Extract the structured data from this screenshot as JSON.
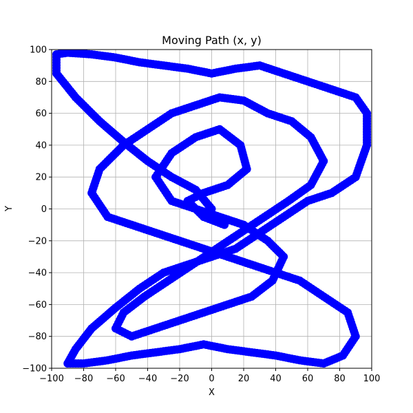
{
  "chart_data": {
    "type": "scatter",
    "title": "Moving Path (x, y)",
    "xlabel": "X",
    "ylabel": "Y",
    "xlim": [
      -100,
      100
    ],
    "ylim": [
      -100,
      100
    ],
    "xticks": [
      -100,
      -80,
      -60,
      -40,
      -20,
      0,
      20,
      40,
      60,
      80,
      100
    ],
    "yticks": [
      -100,
      -80,
      -60,
      -40,
      -20,
      0,
      20,
      40,
      60,
      80,
      100
    ],
    "grid": true,
    "marker_color": "#0000ff",
    "series": [
      {
        "x": [
          0,
          -10,
          -25,
          -40,
          -55,
          -70,
          -85,
          -97,
          -97,
          -90,
          -75,
          -60,
          -45,
          -30,
          -15,
          0,
          15,
          30,
          45,
          60,
          75,
          90,
          97,
          97,
          90,
          75,
          60,
          45,
          30,
          15,
          0,
          -15,
          -30,
          -45,
          -60,
          -75,
          -85,
          -90,
          -80,
          -65,
          -50,
          -35,
          -20,
          -5,
          10,
          25,
          40,
          55,
          70,
          82,
          90,
          85,
          70,
          55,
          40,
          25,
          10,
          -5,
          -20,
          -35,
          -50,
          -65,
          -75,
          -70,
          -55,
          -40,
          -25,
          -10,
          5,
          20,
          35,
          50,
          62,
          70,
          62,
          48,
          33,
          18,
          3,
          -12,
          -27,
          -42,
          -55,
          -60,
          -50,
          -35,
          -20,
          -5,
          10,
          25,
          38,
          45,
          35,
          20,
          5,
          -10,
          -25,
          -35,
          -25,
          -10,
          5,
          18,
          22,
          10,
          -5,
          -15,
          -5,
          8
        ],
        "y": [
          0,
          12,
          20,
          30,
          42,
          55,
          70,
          85,
          97,
          98,
          97,
          95,
          92,
          90,
          88,
          85,
          88,
          90,
          85,
          80,
          75,
          70,
          60,
          40,
          20,
          10,
          5,
          -5,
          -15,
          -25,
          -30,
          -35,
          -40,
          -50,
          -62,
          -75,
          -88,
          -97,
          -97,
          -95,
          -92,
          -90,
          -88,
          -85,
          -88,
          -90,
          -92,
          -95,
          -97,
          -92,
          -80,
          -65,
          -55,
          -45,
          -40,
          -35,
          -30,
          -25,
          -20,
          -15,
          -10,
          -5,
          10,
          25,
          40,
          50,
          60,
          65,
          70,
          68,
          60,
          55,
          45,
          30,
          15,
          5,
          -5,
          -15,
          -25,
          -35,
          -45,
          -55,
          -65,
          -75,
          -80,
          -75,
          -70,
          -65,
          -60,
          -55,
          -45,
          -30,
          -20,
          -10,
          -5,
          0,
          5,
          20,
          35,
          45,
          50,
          40,
          25,
          15,
          10,
          5,
          -5,
          -10
        ]
      }
    ]
  }
}
